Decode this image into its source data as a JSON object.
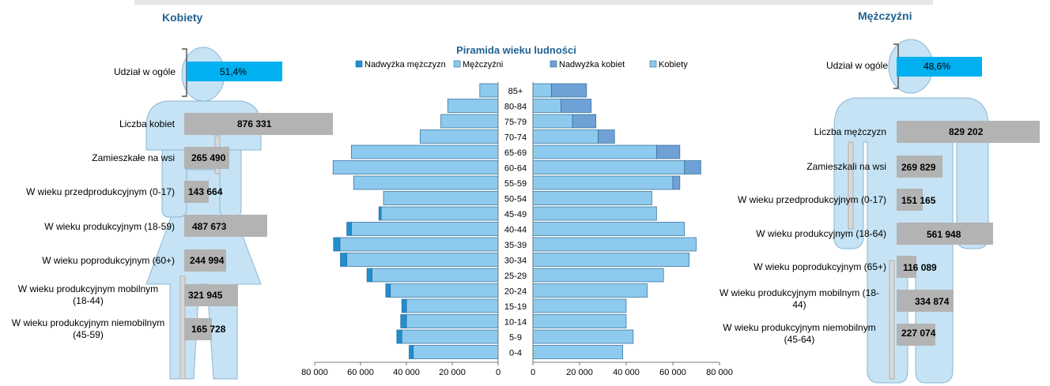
{
  "header": {
    "women_title": "Kobiety",
    "men_title": "Mężczyźni"
  },
  "women_panel": {
    "share_label": "Udział w ogóle",
    "share_value": "51,4%",
    "rows": [
      {
        "label": "Liczba kobiet",
        "value_text": "876 331",
        "value": 876331
      },
      {
        "label": "Zamieszkałe na wsi",
        "value_text": "265 490",
        "value": 265490
      },
      {
        "label": "W wieku przedprodukcyjnym (0-17)",
        "value_text": "143 664",
        "value": 143664
      },
      {
        "label": "W wieku produkcyjnym (18-59)",
        "value_text": "487 673",
        "value": 487673
      },
      {
        "label": "W wieku poprodukcyjnym (60+)",
        "value_text": "244 994",
        "value": 244994
      },
      {
        "label": "W wieku produkcyjnym mobilnym (18-44)",
        "line1": "W wieku produkcyjnym mobilnym",
        "line2": "(18-44)",
        "value_text": "321 945",
        "value": 321945
      },
      {
        "label": "W wieku produkcyjnym niemobilnym (45-59)",
        "line1": "W wieku produkcyjnym niemobilnym",
        "line2": "(45-59)",
        "value_text": "165 728",
        "value": 165728
      }
    ]
  },
  "men_panel": {
    "share_label": "Udział w ogóle",
    "share_value": "48,6%",
    "rows": [
      {
        "label": "Liczba mężczyzn",
        "value_text": "829 202",
        "value": 829202
      },
      {
        "label": "Zamieszkali na wsi",
        "value_text": "269 829",
        "value": 269829
      },
      {
        "label": "W wieku przedprodukcyjnym (0-17)",
        "value_text": "151 165",
        "value": 151165
      },
      {
        "label": "W wieku produkcyjnym (18-64)",
        "value_text": "561 948",
        "value": 561948
      },
      {
        "label": "W wieku poprodukcyjnym (65+)",
        "value_text": "116 089",
        "value": 116089
      },
      {
        "label": "W wieku produkcyjnym mobilnym (18-44)",
        "line1": "W wieku produkcyjnym mobilnym (18-",
        "line2": "44)",
        "value_text": "334 874",
        "value": 334874
      },
      {
        "label": "W wieku produkcyjnym niemobilnym (45-64)",
        "line1": "W wieku produkcyjnym niemobilnym",
        "line2": "(45-64)",
        "value_text": "227 074",
        "value": 227074
      }
    ]
  },
  "colors": {
    "title": "#1f6391",
    "silhouette_fill": "#c5e3f4",
    "silhouette_stroke": "#8ab6d4",
    "share_bar": "#00b0f0",
    "gray_bar": "#b3b3b3",
    "men_bar": "#8ec9ee",
    "men_surplus": "#1f8fcf",
    "women_bar": "#8ec9ee",
    "women_surplus": "#6fa1d6",
    "bar_edge": "#2c6a96"
  },
  "chart_data": {
    "type": "bar",
    "title": "Piramida wieku ludności",
    "categories": [
      "85+",
      "80-84",
      "75-79",
      "70-74",
      "65-69",
      "60-64",
      "55-59",
      "50-54",
      "45-49",
      "40-44",
      "35-39",
      "30-34",
      "25-29",
      "20-24",
      "15-19",
      "10-14",
      "5-9",
      "0-4"
    ],
    "series": [
      {
        "name": "Nadwyżka mężczyzn",
        "side": "left",
        "values": [
          0,
          0,
          0,
          0,
          0,
          0,
          0,
          0,
          1000,
          2000,
          2800,
          2800,
          2200,
          2000,
          2000,
          2500,
          2200,
          1800
        ]
      },
      {
        "name": "Mężczyźni",
        "side": "left",
        "values": [
          8000,
          22000,
          25000,
          34000,
          64000,
          72000,
          63000,
          50000,
          51000,
          64000,
          69000,
          66000,
          55000,
          47000,
          40000,
          40000,
          42000,
          37000
        ]
      },
      {
        "name": "Nadwyżka kobiet",
        "side": "right",
        "values": [
          15000,
          13000,
          10000,
          7000,
          10000,
          7000,
          3000,
          0,
          0,
          0,
          0,
          0,
          0,
          0,
          0,
          0,
          0,
          0
        ]
      },
      {
        "name": "Kobiety",
        "side": "right",
        "values": [
          8000,
          12000,
          17000,
          28000,
          53000,
          65000,
          60000,
          51000,
          53000,
          65000,
          70000,
          67000,
          56000,
          49000,
          40000,
          40000,
          43000,
          38500
        ]
      }
    ],
    "xlim": [
      0,
      80000
    ],
    "left_ticks": [
      "80 000",
      "60 000",
      "40 000",
      "20 000",
      "0"
    ],
    "right_ticks": [
      "0",
      "20 000",
      "40 000",
      "60 000",
      "80 000"
    ],
    "legend_position": "top",
    "grid": false
  }
}
